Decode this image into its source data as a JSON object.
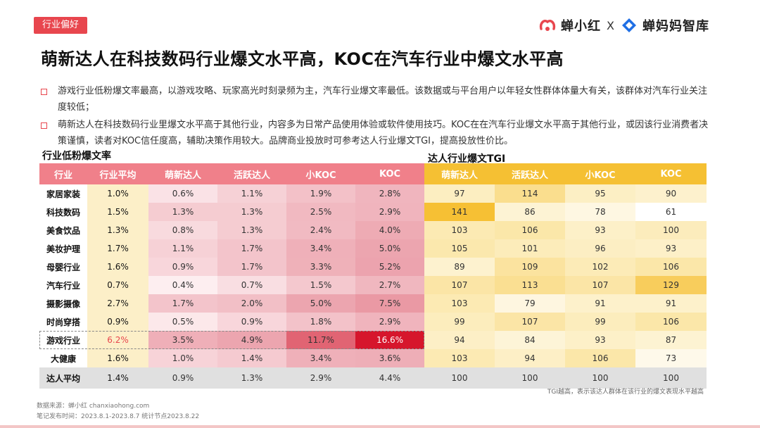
{
  "header": {
    "tag": "行业偏好",
    "logo_left": "蝉小红",
    "logo_sep": "X",
    "logo_right": "蝉妈妈智库",
    "title": "萌新达人在科技数码行业爆文水平高，KOC在汽车行业中爆文水平高"
  },
  "bullets": [
    "游戏行业低粉爆文率最高，以游戏攻略、玩家高光时刻录频为主，汽车行业爆文率最低。该数据或与平台用户以年轻女性群体体量大有关，该群体对汽车行业关注度较低；",
    "萌新达人在科技数码行业里爆文水平高于其他行业，内容多为日常产品使用体验或软件使用技巧。KOC在在汽车行业爆文水平高于其他行业，或因该行业消费者决策谨慎，读者对KOC信任度高，辅助决策作用较大。品牌商业投放时可参考达人行业爆文TGI，提高投放性价比。"
  ],
  "colors": {
    "accent": "#e8464e",
    "left_header": "#f0808a",
    "right_header": "#f5c033",
    "avg_column": "#fcefc8",
    "total_row": "#e0e0e0"
  },
  "chart_data": [
    {
      "type": "heatmap",
      "title": "行业低粉爆文率",
      "row_header": "行业",
      "avg_header": "行业平均",
      "columns": [
        "萌新达人",
        "活跃达人",
        "小KOC",
        "KOC"
      ],
      "rows": [
        {
          "label": "家居家装",
          "avg": "1.0%",
          "values": [
            "0.6%",
            "1.1%",
            "1.9%",
            "2.8%"
          ]
        },
        {
          "label": "科技数码",
          "avg": "1.5%",
          "values": [
            "1.3%",
            "1.3%",
            "2.5%",
            "2.9%"
          ]
        },
        {
          "label": "美食饮品",
          "avg": "1.3%",
          "values": [
            "0.8%",
            "1.3%",
            "2.4%",
            "4.0%"
          ]
        },
        {
          "label": "美妆护理",
          "avg": "1.7%",
          "values": [
            "1.1%",
            "1.7%",
            "3.4%",
            "5.0%"
          ]
        },
        {
          "label": "母婴行业",
          "avg": "1.6%",
          "values": [
            "0.9%",
            "1.7%",
            "3.3%",
            "5.2%"
          ]
        },
        {
          "label": "汽车行业",
          "avg": "0.7%",
          "values": [
            "0.4%",
            "0.7%",
            "1.5%",
            "2.7%"
          ]
        },
        {
          "label": "摄影摄像",
          "avg": "2.7%",
          "values": [
            "1.7%",
            "2.0%",
            "5.0%",
            "7.5%"
          ]
        },
        {
          "label": "时尚穿搭",
          "avg": "0.9%",
          "values": [
            "0.5%",
            "0.9%",
            "1.8%",
            "2.9%"
          ]
        },
        {
          "label": "游戏行业",
          "avg": "6.2%",
          "values": [
            "3.5%",
            "4.9%",
            "11.7%",
            "16.6%"
          ]
        },
        {
          "label": "大健康",
          "avg": "1.6%",
          "values": [
            "1.0%",
            "1.4%",
            "3.4%",
            "3.6%"
          ]
        }
      ],
      "total": {
        "label": "达人平均",
        "avg": "1.4%",
        "values": [
          "0.9%",
          "1.3%",
          "2.9%",
          "4.4%"
        ]
      },
      "highlight_row": "游戏行业"
    },
    {
      "type": "heatmap",
      "title": "达人行业爆文TGI",
      "columns": [
        "萌新达人",
        "活跃达人",
        "小KOC",
        "KOC"
      ],
      "rows": [
        {
          "label": "家居家装",
          "values": [
            97,
            114,
            95,
            90
          ]
        },
        {
          "label": "科技数码",
          "values": [
            141,
            86,
            78,
            61
          ]
        },
        {
          "label": "美食饮品",
          "values": [
            103,
            106,
            93,
            100
          ]
        },
        {
          "label": "美妆护理",
          "values": [
            105,
            101,
            96,
            93
          ]
        },
        {
          "label": "母婴行业",
          "values": [
            89,
            109,
            102,
            106
          ]
        },
        {
          "label": "汽车行业",
          "values": [
            107,
            113,
            107,
            129
          ]
        },
        {
          "label": "摄影摄像",
          "values": [
            103,
            79,
            91,
            91
          ]
        },
        {
          "label": "时尚穿搭",
          "values": [
            99,
            107,
            99,
            106
          ]
        },
        {
          "label": "游戏行业",
          "values": [
            94,
            84,
            93,
            87
          ]
        },
        {
          "label": "大健康",
          "values": [
            103,
            94,
            106,
            73
          ]
        }
      ],
      "total": {
        "values": [
          100,
          100,
          100,
          100
        ]
      }
    }
  ],
  "note": "TGI越高，表示该达人群体在该行业的爆文表现水平越高",
  "footer": {
    "source": "数据来源：蝉小红 chanxiaohong.com",
    "period": "笔记发布时间：2023.8.1-2023.8.7 统计节点2023.8.22"
  }
}
